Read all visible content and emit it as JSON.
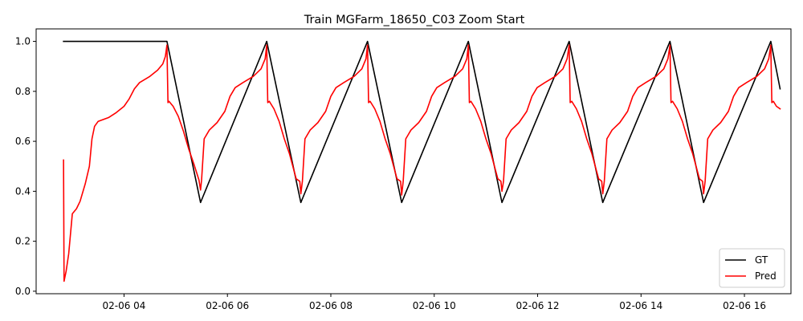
{
  "chart_data": {
    "type": "line",
    "title": "Train MGFarm_18650_C03 Zoom Start",
    "xlabel": "",
    "ylabel": "",
    "x_unit": "hours on 02-06",
    "xlim": [
      2.3,
      16.9
    ],
    "ylim": [
      -0.01,
      1.05
    ],
    "grid": false,
    "legend_position": "lower-right",
    "x_ticks": [
      {
        "value": 4,
        "label": "02-06 04"
      },
      {
        "value": 6,
        "label": "02-06 06"
      },
      {
        "value": 8,
        "label": "02-06 08"
      },
      {
        "value": 10,
        "label": "02-06 10"
      },
      {
        "value": 12,
        "label": "02-06 12"
      },
      {
        "value": 14,
        "label": "02-06 14"
      },
      {
        "value": 16,
        "label": "02-06 16"
      }
    ],
    "y_ticks": [
      {
        "value": 0.0,
        "label": "0.0"
      },
      {
        "value": 0.2,
        "label": "0.2"
      },
      {
        "value": 0.4,
        "label": "0.4"
      },
      {
        "value": 0.6,
        "label": "0.6"
      },
      {
        "value": 0.8,
        "label": "0.8"
      },
      {
        "value": 1.0,
        "label": "1.0"
      }
    ],
    "series": [
      {
        "name": "GT",
        "color": "#000000",
        "points": [
          [
            2.83,
            1.0
          ],
          [
            4.83,
            1.0
          ],
          [
            5.48,
            0.355
          ],
          [
            6.76,
            1.0
          ],
          [
            7.42,
            0.355
          ],
          [
            8.71,
            1.0
          ],
          [
            9.37,
            0.355
          ],
          [
            10.66,
            1.0
          ],
          [
            11.31,
            0.355
          ],
          [
            12.61,
            1.0
          ],
          [
            13.26,
            0.355
          ],
          [
            14.56,
            1.0
          ],
          [
            15.21,
            0.355
          ],
          [
            16.51,
            1.0
          ],
          [
            16.69,
            0.81
          ]
        ]
      },
      {
        "name": "Pred",
        "color": "#ff0000",
        "points": [
          [
            2.83,
            0.525
          ],
          [
            2.84,
            0.04
          ],
          [
            2.88,
            0.08
          ],
          [
            2.93,
            0.15
          ],
          [
            3.0,
            0.31
          ],
          [
            3.08,
            0.33
          ],
          [
            3.15,
            0.36
          ],
          [
            3.25,
            0.43
          ],
          [
            3.33,
            0.5
          ],
          [
            3.38,
            0.61
          ],
          [
            3.43,
            0.66
          ],
          [
            3.5,
            0.68
          ],
          [
            3.7,
            0.695
          ],
          [
            3.85,
            0.715
          ],
          [
            4.0,
            0.74
          ],
          [
            4.1,
            0.77
          ],
          [
            4.2,
            0.81
          ],
          [
            4.3,
            0.835
          ],
          [
            4.5,
            0.86
          ],
          [
            4.65,
            0.885
          ],
          [
            4.75,
            0.91
          ],
          [
            4.8,
            0.94
          ],
          [
            4.83,
            0.985
          ],
          [
            4.85,
            0.755
          ],
          [
            4.87,
            0.76
          ],
          [
            4.95,
            0.74
          ],
          [
            5.05,
            0.7
          ],
          [
            5.15,
            0.64
          ],
          [
            5.25,
            0.57
          ],
          [
            5.35,
            0.51
          ],
          [
            5.45,
            0.445
          ],
          [
            5.48,
            0.405
          ],
          [
            5.5,
            0.445
          ],
          [
            5.55,
            0.61
          ],
          [
            5.65,
            0.645
          ],
          [
            5.8,
            0.675
          ],
          [
            5.95,
            0.72
          ],
          [
            6.05,
            0.78
          ],
          [
            6.15,
            0.815
          ],
          [
            6.3,
            0.835
          ],
          [
            6.5,
            0.86
          ],
          [
            6.65,
            0.89
          ],
          [
            6.73,
            0.93
          ],
          [
            6.76,
            0.985
          ],
          [
            6.78,
            0.755
          ],
          [
            6.81,
            0.76
          ],
          [
            6.9,
            0.73
          ],
          [
            7.0,
            0.68
          ],
          [
            7.1,
            0.61
          ],
          [
            7.2,
            0.55
          ],
          [
            7.33,
            0.45
          ],
          [
            7.4,
            0.44
          ],
          [
            7.42,
            0.39
          ],
          [
            7.45,
            0.44
          ],
          [
            7.5,
            0.61
          ],
          [
            7.6,
            0.645
          ],
          [
            7.75,
            0.675
          ],
          [
            7.9,
            0.72
          ],
          [
            8.0,
            0.78
          ],
          [
            8.1,
            0.815
          ],
          [
            8.25,
            0.835
          ],
          [
            8.45,
            0.86
          ],
          [
            8.6,
            0.89
          ],
          [
            8.68,
            0.93
          ],
          [
            8.71,
            0.985
          ],
          [
            8.73,
            0.755
          ],
          [
            8.76,
            0.76
          ],
          [
            8.85,
            0.73
          ],
          [
            8.95,
            0.68
          ],
          [
            9.05,
            0.61
          ],
          [
            9.15,
            0.55
          ],
          [
            9.28,
            0.45
          ],
          [
            9.35,
            0.44
          ],
          [
            9.37,
            0.385
          ],
          [
            9.4,
            0.44
          ],
          [
            9.45,
            0.61
          ],
          [
            9.55,
            0.645
          ],
          [
            9.7,
            0.675
          ],
          [
            9.85,
            0.72
          ],
          [
            9.95,
            0.78
          ],
          [
            10.05,
            0.815
          ],
          [
            10.2,
            0.835
          ],
          [
            10.4,
            0.86
          ],
          [
            10.55,
            0.89
          ],
          [
            10.63,
            0.93
          ],
          [
            10.66,
            0.985
          ],
          [
            10.68,
            0.755
          ],
          [
            10.71,
            0.76
          ],
          [
            10.8,
            0.73
          ],
          [
            10.9,
            0.68
          ],
          [
            11.0,
            0.61
          ],
          [
            11.1,
            0.55
          ],
          [
            11.23,
            0.45
          ],
          [
            11.29,
            0.44
          ],
          [
            11.31,
            0.4
          ],
          [
            11.34,
            0.44
          ],
          [
            11.39,
            0.61
          ],
          [
            11.49,
            0.645
          ],
          [
            11.64,
            0.675
          ],
          [
            11.79,
            0.72
          ],
          [
            11.89,
            0.78
          ],
          [
            11.99,
            0.815
          ],
          [
            12.14,
            0.835
          ],
          [
            12.34,
            0.86
          ],
          [
            12.49,
            0.89
          ],
          [
            12.57,
            0.93
          ],
          [
            12.61,
            0.985
          ],
          [
            12.63,
            0.755
          ],
          [
            12.66,
            0.76
          ],
          [
            12.75,
            0.73
          ],
          [
            12.85,
            0.68
          ],
          [
            12.95,
            0.61
          ],
          [
            13.05,
            0.55
          ],
          [
            13.18,
            0.45
          ],
          [
            13.24,
            0.44
          ],
          [
            13.26,
            0.39
          ],
          [
            13.29,
            0.44
          ],
          [
            13.34,
            0.61
          ],
          [
            13.44,
            0.645
          ],
          [
            13.59,
            0.675
          ],
          [
            13.74,
            0.72
          ],
          [
            13.84,
            0.78
          ],
          [
            13.94,
            0.815
          ],
          [
            14.09,
            0.835
          ],
          [
            14.29,
            0.86
          ],
          [
            14.44,
            0.89
          ],
          [
            14.52,
            0.93
          ],
          [
            14.56,
            0.985
          ],
          [
            14.58,
            0.755
          ],
          [
            14.61,
            0.76
          ],
          [
            14.7,
            0.73
          ],
          [
            14.8,
            0.68
          ],
          [
            14.9,
            0.61
          ],
          [
            15.0,
            0.55
          ],
          [
            15.13,
            0.45
          ],
          [
            15.19,
            0.44
          ],
          [
            15.21,
            0.39
          ],
          [
            15.24,
            0.44
          ],
          [
            15.29,
            0.61
          ],
          [
            15.39,
            0.645
          ],
          [
            15.54,
            0.675
          ],
          [
            15.69,
            0.72
          ],
          [
            15.79,
            0.78
          ],
          [
            15.89,
            0.815
          ],
          [
            16.04,
            0.835
          ],
          [
            16.24,
            0.86
          ],
          [
            16.39,
            0.89
          ],
          [
            16.47,
            0.93
          ],
          [
            16.51,
            0.985
          ],
          [
            16.53,
            0.755
          ],
          [
            16.56,
            0.76
          ],
          [
            16.62,
            0.74
          ],
          [
            16.69,
            0.73
          ]
        ]
      }
    ]
  }
}
